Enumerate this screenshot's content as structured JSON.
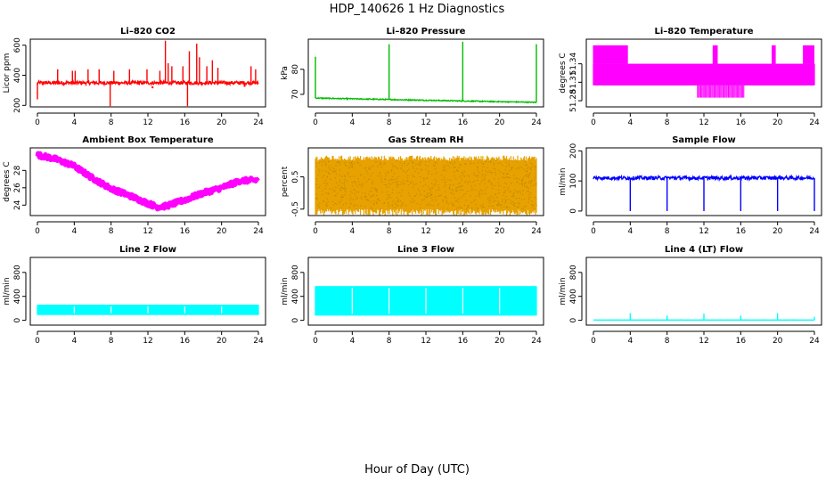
{
  "figure": {
    "title": "HDP_140626  1 Hz Diagnostics",
    "xlabel": "Hour of Day (UTC)"
  },
  "chart_data": [
    {
      "type": "line",
      "title": "Li–820 CO2",
      "ylabel": "Licor ppm",
      "color": "#ff0000",
      "xlim": [
        0,
        24
      ],
      "xticks": [
        0,
        4,
        8,
        12,
        16,
        20,
        24
      ],
      "ylim": [
        190,
        640
      ],
      "yticks": [
        200,
        400,
        600
      ],
      "baseline": 350,
      "noise": 12,
      "spikes": [
        [
          0,
          240
        ],
        [
          2.2,
          440
        ],
        [
          3.8,
          430
        ],
        [
          4.1,
          430
        ],
        [
          5.5,
          440
        ],
        [
          6.7,
          440
        ],
        [
          7.9,
          195
        ],
        [
          8.3,
          430
        ],
        [
          10.0,
          440
        ],
        [
          11.9,
          440
        ],
        [
          13.3,
          430
        ],
        [
          13.9,
          630
        ],
        [
          14.2,
          480
        ],
        [
          14.6,
          460
        ],
        [
          15.8,
          460
        ],
        [
          16.3,
          195
        ],
        [
          16.5,
          560
        ],
        [
          17.3,
          610
        ],
        [
          17.6,
          520
        ],
        [
          18.4,
          460
        ],
        [
          19.0,
          500
        ],
        [
          19.6,
          450
        ],
        [
          23.2,
          460
        ],
        [
          23.7,
          440
        ]
      ],
      "dots": [
        [
          12.5,
          320
        ],
        [
          22.5,
          330
        ]
      ]
    },
    {
      "type": "line",
      "title": "Li–820 Pressure",
      "ylabel": "kPa",
      "color": "#00bb00",
      "xlim": [
        0,
        24
      ],
      "xticks": [
        0,
        4,
        8,
        12,
        16,
        20,
        24
      ],
      "ylim": [
        65,
        92
      ],
      "yticks": [
        70,
        80
      ],
      "baseline_start": 68.5,
      "baseline_end": 66.8,
      "noise": 0.2,
      "spikes": [
        [
          0,
          85
        ],
        [
          8,
          90
        ],
        [
          16,
          91
        ],
        [
          24,
          90
        ]
      ]
    },
    {
      "type": "band",
      "title": "Li–820 Temperature",
      "ylabel": "degrees C",
      "color": "#ff00ff",
      "xlim": [
        0,
        24
      ],
      "xticks": [
        0,
        4,
        8,
        12,
        16,
        20,
        24
      ],
      "ylim": [
        51.27,
        51.38
      ],
      "yticks": [
        51.28,
        51.31,
        51.34
      ],
      "band_low": 51.305,
      "band_high": 51.34,
      "upper_reach": 51.37,
      "lower_reach": 51.285,
      "upper_ranges": [
        [
          0,
          3.7
        ],
        [
          13.0,
          13.5
        ],
        [
          19.4,
          19.8
        ],
        [
          22.8,
          24
        ]
      ],
      "lower_ranges": [
        [
          11.3,
          16.4
        ]
      ]
    },
    {
      "type": "line",
      "title": "Ambient Box Temperature",
      "ylabel": "degrees C",
      "color": "#ff00ff",
      "xlim": [
        0,
        24
      ],
      "xticks": [
        0,
        4,
        8,
        12,
        16,
        20,
        24
      ],
      "ylim": [
        22.8,
        30.6
      ],
      "yticks": [
        24,
        26,
        28
      ],
      "points": [
        [
          0,
          29.8
        ],
        [
          2,
          29.3
        ],
        [
          4,
          28.5
        ],
        [
          6,
          27.1
        ],
        [
          8,
          25.9
        ],
        [
          10,
          25.1
        ],
        [
          12,
          24.2
        ],
        [
          13,
          23.8
        ],
        [
          14,
          23.9
        ],
        [
          16,
          24.6
        ],
        [
          18,
          25.4
        ],
        [
          20,
          26.0
        ],
        [
          22,
          26.8
        ],
        [
          24,
          26.9
        ]
      ],
      "noise": 0.28
    },
    {
      "type": "band",
      "title": "Gas Stream RH",
      "ylabel": "percent",
      "color": "#e6a100",
      "xlim": [
        0,
        24
      ],
      "xticks": [
        0,
        4,
        8,
        12,
        16,
        20,
        24
      ],
      "ylim": [
        -0.7,
        1.4
      ],
      "yticks": [
        -0.5,
        0.5
      ],
      "band_low": -0.5,
      "band_high": 1.0,
      "noise": 0.2
    },
    {
      "type": "line",
      "title": "Sample Flow",
      "ylabel": "ml/min",
      "color": "#0000ff",
      "xlim": [
        0,
        24
      ],
      "xticks": [
        0,
        4,
        8,
        12,
        16,
        20,
        24
      ],
      "ylim": [
        -15,
        210
      ],
      "yticks": [
        0,
        100,
        200
      ],
      "baseline": 110,
      "noise": 6,
      "spikes": [
        [
          4,
          0
        ],
        [
          8,
          0
        ],
        [
          12,
          0
        ],
        [
          16,
          0
        ],
        [
          20,
          0
        ],
        [
          24,
          0
        ]
      ]
    },
    {
      "type": "band",
      "title": "Line 2 Flow",
      "ylabel": "ml/min",
      "color": "#00ffff",
      "xlim": [
        0,
        24
      ],
      "xticks": [
        0,
        4,
        8,
        12,
        16,
        20,
        24
      ],
      "ylim": [
        -80,
        1050
      ],
      "yticks": [
        0,
        400,
        800
      ],
      "band_low": 90,
      "band_high": 260,
      "gaps": [
        4,
        8,
        12,
        16,
        20
      ]
    },
    {
      "type": "band",
      "title": "Line 3 Flow",
      "ylabel": "ml/min",
      "color": "#00ffff",
      "xlim": [
        0,
        24
      ],
      "xticks": [
        0,
        4,
        8,
        12,
        16,
        20,
        24
      ],
      "ylim": [
        -80,
        1050
      ],
      "yticks": [
        0,
        400,
        800
      ],
      "band_low": 80,
      "band_high": 570,
      "gaps": [
        4,
        8,
        12,
        16,
        20
      ]
    },
    {
      "type": "line",
      "title": "Line 4 (LT) Flow",
      "ylabel": "ml/min",
      "color": "#00ffff",
      "xlim": [
        0,
        24
      ],
      "xticks": [
        0,
        4,
        8,
        12,
        16,
        20,
        24
      ],
      "ylim": [
        -80,
        1050
      ],
      "yticks": [
        0,
        400,
        800
      ],
      "baseline": 5,
      "noise": 1,
      "spikes": [
        [
          4,
          120
        ],
        [
          8,
          80
        ],
        [
          12,
          110
        ],
        [
          16,
          80
        ],
        [
          20,
          120
        ],
        [
          24,
          60
        ]
      ]
    }
  ]
}
